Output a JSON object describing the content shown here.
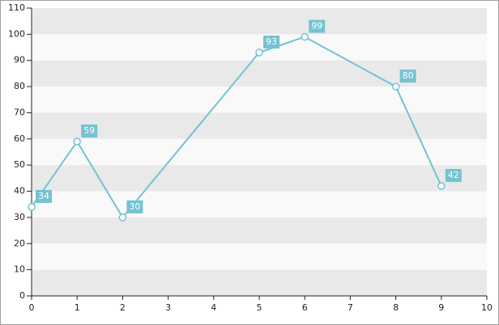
{
  "chart_data": {
    "type": "line",
    "x": [
      0,
      1,
      2,
      5,
      6,
      8,
      9
    ],
    "series": [
      {
        "color": "#74c2d2",
        "values": [
          34,
          59,
          30,
          93,
          99,
          80,
          42
        ]
      }
    ],
    "xlim": [
      0,
      10
    ],
    "xticks": [
      0,
      1,
      2,
      3,
      4,
      5,
      6,
      7,
      8,
      9,
      10
    ],
    "ylim": [
      0,
      110
    ],
    "yticks": [
      0,
      10,
      20,
      30,
      40,
      50,
      60,
      70,
      80,
      90,
      100,
      110
    ],
    "grid": true
  }
}
